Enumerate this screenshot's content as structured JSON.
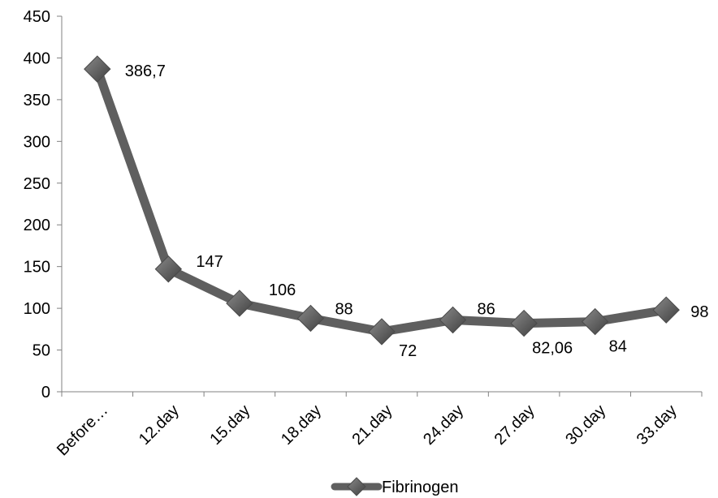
{
  "chart_data": {
    "type": "line",
    "title": "",
    "xlabel": "",
    "ylabel": "",
    "categories": [
      "Before…",
      "12.day",
      "15.day",
      "18.day",
      "21.day",
      "24.day",
      "27.day",
      "30.day",
      "33.day"
    ],
    "series": [
      {
        "name": "Fibrinogen",
        "values": [
          386.7,
          147,
          106,
          88,
          72,
          86,
          82.06,
          84,
          98
        ],
        "data_labels": [
          "386,7",
          "147",
          "106",
          "88",
          "72",
          "86",
          "82,06",
          "84",
          "98"
        ],
        "color": "#5f5f5f",
        "marker": "diamond"
      }
    ],
    "ylim": [
      0,
      450
    ],
    "yticks": [
      0,
      50,
      100,
      150,
      200,
      250,
      300,
      350,
      400,
      450
    ],
    "ytick_labels": [
      "0",
      "50",
      "100",
      "150",
      "200",
      "250",
      "300",
      "350",
      "400",
      "450"
    ],
    "grid": false,
    "legend": {
      "position": "bottom",
      "entries": [
        "Fibrinogen"
      ]
    }
  }
}
